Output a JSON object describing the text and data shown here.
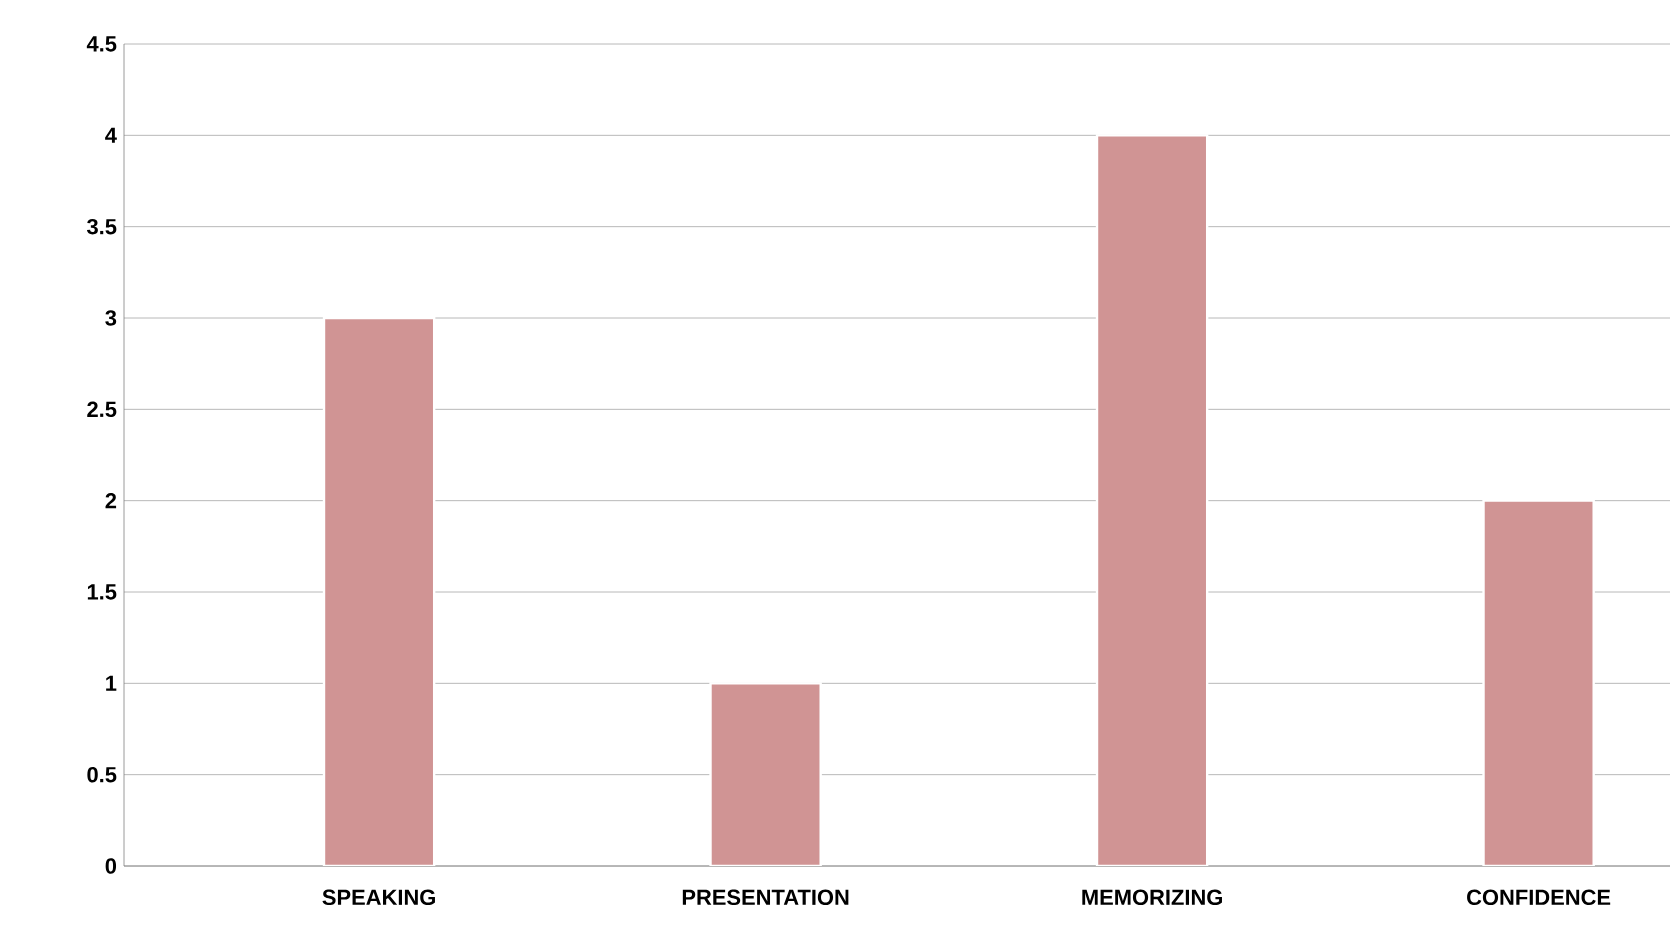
{
  "chart_data": {
    "type": "bar",
    "categories": [
      "SPEAKING",
      "PRESENTATION",
      "MEMORIZING",
      "CONFIDENCE"
    ],
    "values": [
      3,
      1,
      4,
      2
    ],
    "color": "#d09494",
    "ylim": [
      0,
      4.5
    ],
    "yticks": [
      0,
      0.5,
      1,
      1.5,
      2,
      2.5,
      3,
      3.5,
      4,
      4.5
    ],
    "grid": "y"
  }
}
